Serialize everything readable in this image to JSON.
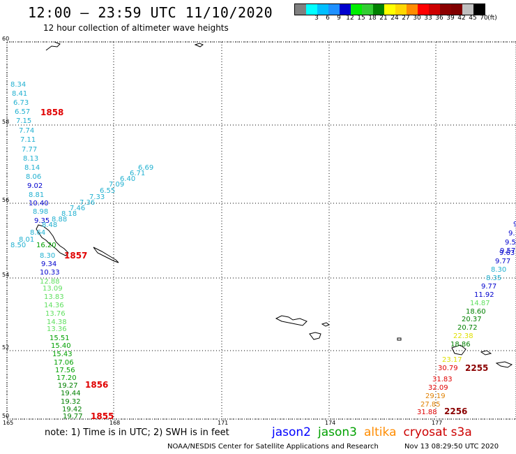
{
  "header": {
    "title": "12:00 – 23:59 UTC 11/10/2020",
    "subtitle": "12 hour collection of altimeter wave heights"
  },
  "legend": {
    "unit": "(ft)",
    "bins": [
      {
        "label": "",
        "color": "#808080"
      },
      {
        "label": "3",
        "color": "#00ffff"
      },
      {
        "label": "6",
        "color": "#00bfff"
      },
      {
        "label": "9",
        "color": "#1e90ff"
      },
      {
        "label": "12",
        "color": "#0000cd"
      },
      {
        "label": "15",
        "color": "#00ee00"
      },
      {
        "label": "18",
        "color": "#32cd32"
      },
      {
        "label": "21",
        "color": "#008000"
      },
      {
        "label": "24",
        "color": "#ffff00"
      },
      {
        "label": "27",
        "color": "#ffd700"
      },
      {
        "label": "30",
        "color": "#ff8c00"
      },
      {
        "label": "33",
        "color": "#ff0000"
      },
      {
        "label": "36",
        "color": "#cd0000"
      },
      {
        "label": "39",
        "color": "#8b0000"
      },
      {
        "label": "42",
        "color": "#800000"
      },
      {
        "label": "45",
        "color": "#c0c0c0"
      },
      {
        "label": "70",
        "color": "#000000"
      }
    ]
  },
  "axes": {
    "lat_labels": [
      "60",
      "58",
      "56",
      "54",
      "52",
      "50"
    ],
    "lon_labels": [
      "165",
      "168",
      "171",
      "174",
      "177"
    ]
  },
  "tracks": {
    "west_vertical": [
      {
        "v": "8.34",
        "c": "#20b0d0"
      },
      {
        "v": "8.41",
        "c": "#20b0d0"
      },
      {
        "v": "6.73",
        "c": "#20b0d0"
      },
      {
        "v": "6.57",
        "c": "#20b0d0"
      },
      {
        "v": "7.15",
        "c": "#20b0d0"
      },
      {
        "v": "7.74",
        "c": "#20b0d0"
      },
      {
        "v": "7.11",
        "c": "#20b0d0"
      },
      {
        "v": "7.77",
        "c": "#20b0d0"
      },
      {
        "v": "8.13",
        "c": "#20b0d0"
      },
      {
        "v": "8.14",
        "c": "#20b0d0"
      },
      {
        "v": "8.06",
        "c": "#20b0d0"
      },
      {
        "v": "9.02",
        "c": "#0000cd"
      },
      {
        "v": "8.81",
        "c": "#20b0d0"
      },
      {
        "v": "10.40",
        "c": "#0000cd"
      },
      {
        "v": "8.98",
        "c": "#20b0d0"
      },
      {
        "v": "9.35",
        "c": "#0000cd"
      },
      {
        "v": "8.64",
        "c": "#20b0d0"
      },
      {
        "v": "8.01",
        "c": "#20b0d0"
      },
      {
        "v": "8.50",
        "c": "#20b0d0"
      },
      {
        "v": "16.20",
        "c": "#00a000"
      },
      {
        "v": "8.30",
        "c": "#20b0d0"
      },
      {
        "v": "9.34",
        "c": "#0000cd"
      },
      {
        "v": "10.33",
        "c": "#0000cd"
      },
      {
        "v": "12.88",
        "c": "#60e060"
      },
      {
        "v": "13.09",
        "c": "#60e060"
      },
      {
        "v": "13.83",
        "c": "#60e060"
      },
      {
        "v": "14.36",
        "c": "#60e060"
      },
      {
        "v": "13.76",
        "c": "#60e060"
      },
      {
        "v": "14.38",
        "c": "#60e060"
      },
      {
        "v": "13.36",
        "c": "#60e060"
      },
      {
        "v": "15.51",
        "c": "#00a000"
      },
      {
        "v": "15.40",
        "c": "#00a000"
      },
      {
        "v": "15.43",
        "c": "#00a000"
      },
      {
        "v": "17.06",
        "c": "#00a000"
      },
      {
        "v": "17.56",
        "c": "#00a000"
      },
      {
        "v": "17.20",
        "c": "#00a000"
      },
      {
        "v": "19.27",
        "c": "#008000"
      },
      {
        "v": "19.44",
        "c": "#008000"
      },
      {
        "v": "19.32",
        "c": "#008000"
      },
      {
        "v": "19.42",
        "c": "#008000"
      },
      {
        "v": "19.77",
        "c": "#008000"
      }
    ],
    "west_diagonal": [
      {
        "v": "6.69",
        "c": "#20b0d0"
      },
      {
        "v": "6.71",
        "c": "#20b0d0"
      },
      {
        "v": "6.40",
        "c": "#20b0d0"
      },
      {
        "v": "7.09",
        "c": "#20b0d0"
      },
      {
        "v": "6.55",
        "c": "#20b0d0"
      },
      {
        "v": "7.33",
        "c": "#20b0d0"
      },
      {
        "v": "7.36",
        "c": "#20b0d0"
      },
      {
        "v": "7.46",
        "c": "#20b0d0"
      },
      {
        "v": "8.18",
        "c": "#20b0d0"
      },
      {
        "v": "8.88",
        "c": "#20b0d0"
      },
      {
        "v": "8.48",
        "c": "#20b0d0"
      }
    ],
    "east": [
      {
        "v": "9.",
        "c": "#0000cd"
      },
      {
        "v": "9.",
        "c": "#0000cd"
      },
      {
        "v": "9.5",
        "c": "#0000cd"
      },
      {
        "v": "9.57",
        "c": "#0000cd"
      },
      {
        "v": "9.63",
        "c": "#0000cd"
      },
      {
        "v": "9.77",
        "c": "#0000cd"
      },
      {
        "v": "8.30",
        "c": "#20b0d0"
      },
      {
        "v": "8.35",
        "c": "#20b0d0"
      },
      {
        "v": "9.77",
        "c": "#0000cd"
      },
      {
        "v": "11.92",
        "c": "#0000cd"
      },
      {
        "v": "14.87",
        "c": "#60e060"
      },
      {
        "v": "18.60",
        "c": "#008000"
      },
      {
        "v": "20.37",
        "c": "#008000"
      },
      {
        "v": "20.72",
        "c": "#008000"
      },
      {
        "v": "22.38",
        "c": "#e0e000"
      },
      {
        "v": "18.86",
        "c": "#008000"
      },
      {
        "v": "23.17",
        "c": "#e0e000"
      },
      {
        "v": "30.79",
        "c": "#e00000"
      },
      {
        "v": "31.83",
        "c": "#e00000"
      },
      {
        "v": "32.09",
        "c": "#e00000"
      },
      {
        "v": "29.19",
        "c": "#e08000"
      },
      {
        "v": "27.85",
        "c": "#e08000"
      },
      {
        "v": "31.88",
        "c": "#e00000"
      }
    ]
  },
  "pass_times": [
    {
      "t": "1858",
      "c": "#e00000"
    },
    {
      "t": "1857",
      "c": "#e00000"
    },
    {
      "t": "1856",
      "c": "#e00000"
    },
    {
      "t": "1855",
      "c": "#e00000"
    },
    {
      "t": "2255",
      "c": "#8b0000"
    },
    {
      "t": "2256",
      "c": "#8b0000"
    }
  ],
  "footer": {
    "note": "note: 1) Time is in UTC; 2) SWH is in feet",
    "satellites": [
      {
        "name": "jason2",
        "color": "#0000ff"
      },
      {
        "name": "jason3",
        "color": "#00a000"
      },
      {
        "name": "altika",
        "color": "#ff8c00"
      },
      {
        "name": "cryosat s3a",
        "color": "#cc0000"
      }
    ],
    "credit": "NOAA/NESDIS Center for Satellite Applications and Research",
    "timestamp": "Nov 13 08:29:50 UTC 2020"
  }
}
